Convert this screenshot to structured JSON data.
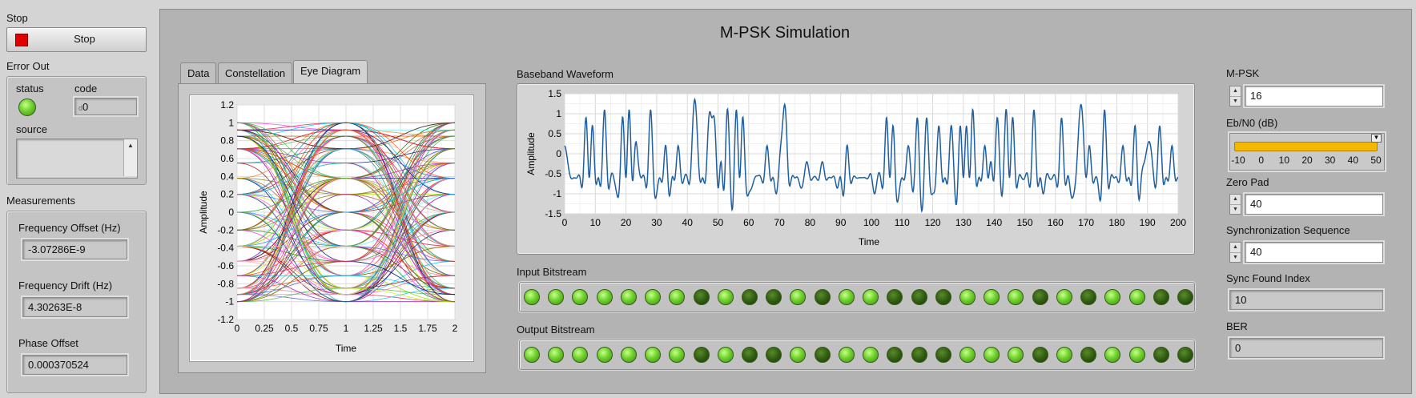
{
  "stop": {
    "label": "Stop",
    "button_label": "Stop"
  },
  "error_out": {
    "label": "Error Out",
    "status_label": "status",
    "code_label": "code",
    "code_value": "0",
    "code_prefix": "d",
    "source_label": "source"
  },
  "measurements": {
    "label": "Measurements",
    "freq_offset_label": "Frequency Offset (Hz)",
    "freq_offset_value": "-3.07286E-9",
    "freq_drift_label": "Frequency Drift (Hz)",
    "freq_drift_value": "4.30263E-8",
    "phase_offset_label": "Phase Offset",
    "phase_offset_value": "0.000370524"
  },
  "title": "M-PSK Simulation",
  "tabs": [
    {
      "label": "Data"
    },
    {
      "label": "Constellation"
    },
    {
      "label": "Eye Diagram"
    }
  ],
  "eye": {
    "xlabel": "Time",
    "ylabel": "Amplitude",
    "xticks": [
      "0",
      "0.25",
      "0.5",
      "0.75",
      "1",
      "1.25",
      "1.5",
      "1.75",
      "2"
    ],
    "yticks": [
      "1.2",
      "1",
      "0.8",
      "0.6",
      "0.4",
      "0.2",
      "0",
      "-0.2",
      "-0.4",
      "-0.6",
      "-0.8",
      "-1",
      "-1.2"
    ]
  },
  "baseband": {
    "label": "Baseband Waveform",
    "xlabel": "Time",
    "ylabel": "Amplitude",
    "xticks": [
      "0",
      "10",
      "20",
      "30",
      "40",
      "50",
      "60",
      "70",
      "80",
      "90",
      "100",
      "110",
      "120",
      "130",
      "140",
      "150",
      "160",
      "170",
      "180",
      "190",
      "200"
    ],
    "yticks": [
      "1.5",
      "1",
      "0.5",
      "0",
      "-0.5",
      "-1",
      "-1.5"
    ]
  },
  "input_bitstream": {
    "label": "Input Bitstream",
    "bits": [
      1,
      1,
      1,
      1,
      1,
      1,
      1,
      0,
      1,
      0,
      0,
      1,
      0,
      1,
      1,
      0,
      0,
      0,
      1,
      1,
      1,
      0,
      1,
      0,
      1,
      1,
      0,
      0
    ]
  },
  "output_bitstream": {
    "label": "Output Bitstream",
    "bits": [
      1,
      1,
      1,
      1,
      1,
      1,
      1,
      0,
      1,
      0,
      0,
      1,
      0,
      1,
      1,
      0,
      0,
      0,
      1,
      1,
      1,
      0,
      1,
      0,
      1,
      1,
      0,
      0
    ]
  },
  "colors": {
    "led_on": "#6ed12d",
    "led_off": "#2e5a10",
    "waveform": "#1f5fa0",
    "slider_fill": "#f5b800"
  },
  "right": {
    "mpsk_label": "M-PSK",
    "mpsk_value": "16",
    "ebn0_label": "Eb/N0 (dB)",
    "ebn0_ticks": [
      "-10",
      "0",
      "10",
      "20",
      "30",
      "40",
      "50"
    ],
    "ebn0_value": 50,
    "zero_pad_label": "Zero Pad",
    "zero_pad_value": "40",
    "sync_seq_label": "Synchronization Sequence",
    "sync_seq_value": "40",
    "sync_found_label": "Sync Found Index",
    "sync_found_value": "10",
    "ber_label": "BER",
    "ber_value": "0"
  }
}
